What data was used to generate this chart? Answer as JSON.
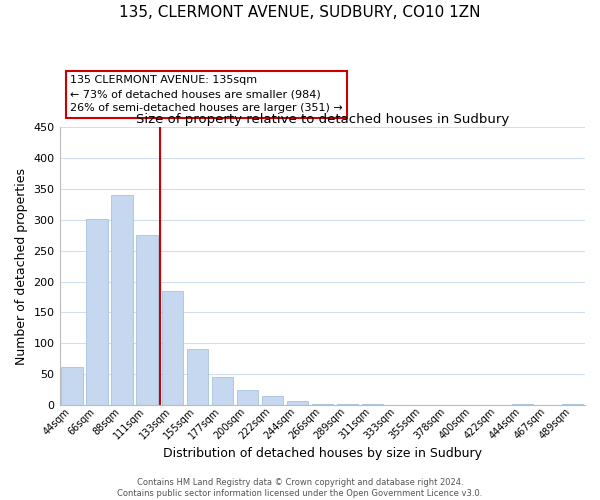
{
  "title": "135, CLERMONT AVENUE, SUDBURY, CO10 1ZN",
  "subtitle": "Size of property relative to detached houses in Sudbury",
  "xlabel": "Distribution of detached houses by size in Sudbury",
  "ylabel": "Number of detached properties",
  "bar_labels": [
    "44sqm",
    "66sqm",
    "88sqm",
    "111sqm",
    "133sqm",
    "155sqm",
    "177sqm",
    "200sqm",
    "222sqm",
    "244sqm",
    "266sqm",
    "289sqm",
    "311sqm",
    "333sqm",
    "355sqm",
    "378sqm",
    "400sqm",
    "422sqm",
    "444sqm",
    "467sqm",
    "489sqm"
  ],
  "bar_heights": [
    62,
    302,
    340,
    275,
    185,
    90,
    45,
    24,
    15,
    7,
    2,
    1,
    1,
    0,
    0,
    0,
    0,
    0,
    1,
    0,
    1
  ],
  "bar_color": "#c5d8ef",
  "bar_edge_color": "#9bbad8",
  "grid_color": "#d0dff0",
  "vline_x_index": 4,
  "vline_color": "#cc0000",
  "annotation_text": "135 CLERMONT AVENUE: 135sqm\n← 73% of detached houses are smaller (984)\n26% of semi-detached houses are larger (351) →",
  "annotation_box_color": "#ffffff",
  "annotation_box_edge": "#cc0000",
  "ylim": [
    0,
    450
  ],
  "footer1": "Contains HM Land Registry data © Crown copyright and database right 2024.",
  "footer2": "Contains public sector information licensed under the Open Government Licence v3.0.",
  "bg_color": "#ffffff",
  "title_fontsize": 11,
  "subtitle_fontsize": 9.5,
  "tick_fontsize": 7,
  "ylabel_fontsize": 9,
  "xlabel_fontsize": 9
}
